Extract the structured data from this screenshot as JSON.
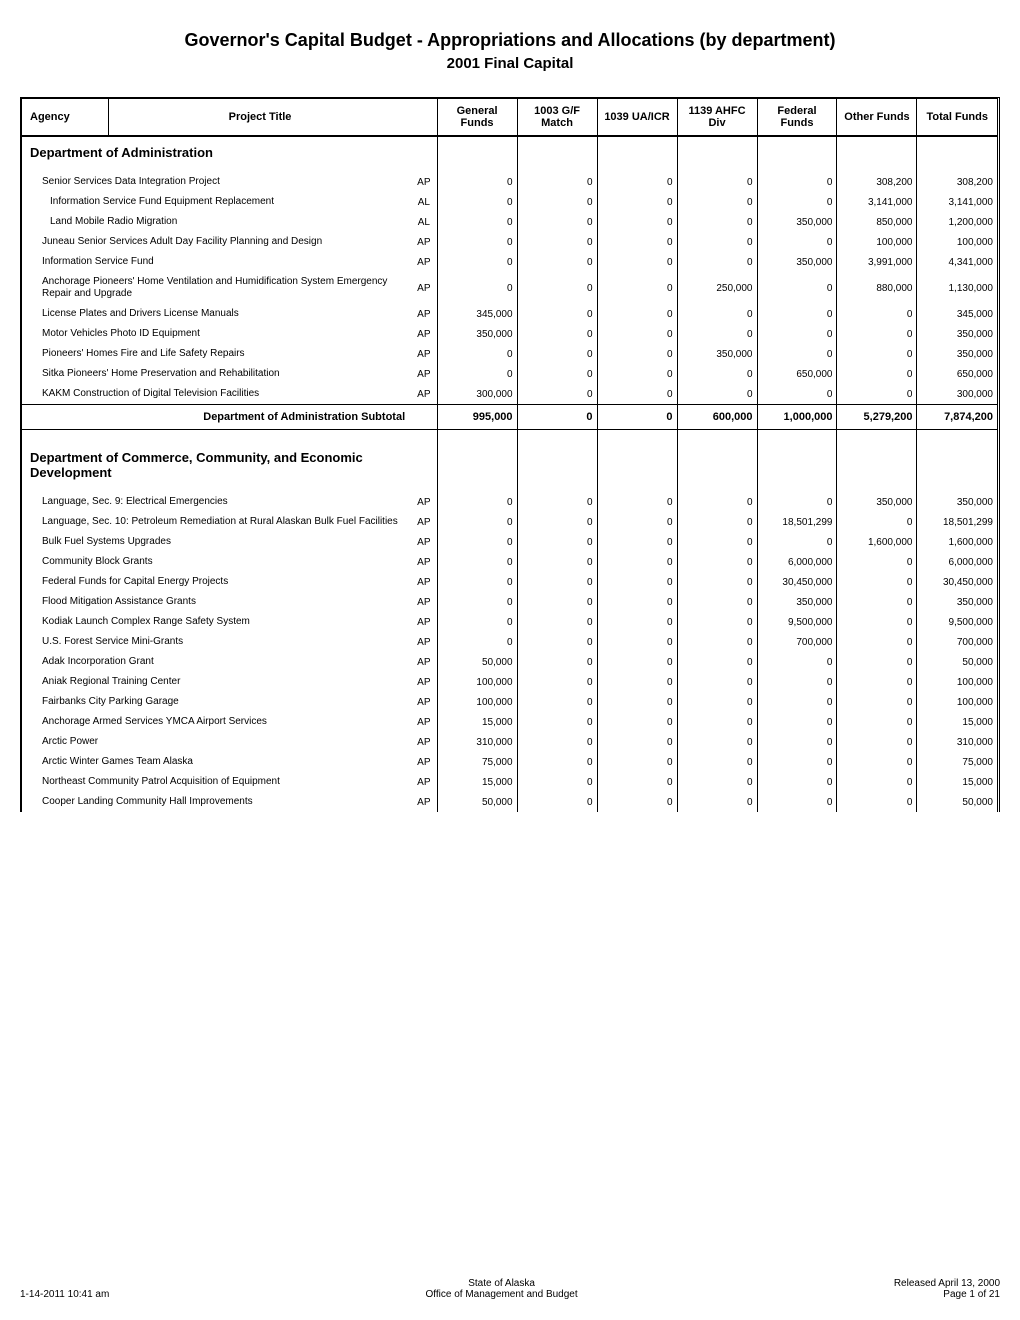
{
  "title": "Governor's Capital Budget - Appropriations and Allocations (by department)",
  "subtitle": "2001 Final Capital",
  "headers": {
    "agency": "Agency",
    "project": "Project Title",
    "general_funds": "General Funds",
    "gf_match": "1003 G/F Match",
    "ua_icr": "1039 UA/ICR",
    "ahfc_div": "1139 AHFC Div",
    "federal_funds": "Federal Funds",
    "other_funds": "Other Funds",
    "total_funds": "Total Funds"
  },
  "dept1": {
    "name": "Department of Administration",
    "subtotal_label": "Department of Administration Subtotal",
    "rows": [
      {
        "name": "Senior Services Data Integration Project",
        "code": "AP",
        "indent": false,
        "gf": "0",
        "gfm": "0",
        "ua": "0",
        "ahfc": "0",
        "fed": "0",
        "other": "308,200",
        "total": "308,200"
      },
      {
        "name": "Information Service Fund Equipment Replacement",
        "code": "AL",
        "indent": true,
        "gf": "0",
        "gfm": "0",
        "ua": "0",
        "ahfc": "0",
        "fed": "0",
        "other": "3,141,000",
        "total": "3,141,000"
      },
      {
        "name": "Land Mobile Radio Migration",
        "code": "AL",
        "indent": true,
        "gf": "0",
        "gfm": "0",
        "ua": "0",
        "ahfc": "0",
        "fed": "350,000",
        "other": "850,000",
        "total": "1,200,000"
      },
      {
        "name": "Juneau Senior Services Adult Day Facility Planning and Design",
        "code": "AP",
        "indent": false,
        "gf": "0",
        "gfm": "0",
        "ua": "0",
        "ahfc": "0",
        "fed": "0",
        "other": "100,000",
        "total": "100,000"
      },
      {
        "name": "Information Service Fund",
        "code": "AP",
        "indent": false,
        "gf": "0",
        "gfm": "0",
        "ua": "0",
        "ahfc": "0",
        "fed": "350,000",
        "other": "3,991,000",
        "total": "4,341,000"
      },
      {
        "name": "Anchorage Pioneers' Home Ventilation and Humidification System Emergency Repair and Upgrade",
        "code": "AP",
        "indent": false,
        "gf": "0",
        "gfm": "0",
        "ua": "0",
        "ahfc": "250,000",
        "fed": "0",
        "other": "880,000",
        "total": "1,130,000"
      },
      {
        "name": "License Plates and Drivers License Manuals",
        "code": "AP",
        "indent": false,
        "gf": "345,000",
        "gfm": "0",
        "ua": "0",
        "ahfc": "0",
        "fed": "0",
        "other": "0",
        "total": "345,000"
      },
      {
        "name": "Motor Vehicles Photo ID Equipment",
        "code": "AP",
        "indent": false,
        "gf": "350,000",
        "gfm": "0",
        "ua": "0",
        "ahfc": "0",
        "fed": "0",
        "other": "0",
        "total": "350,000"
      },
      {
        "name": "Pioneers' Homes Fire and Life Safety Repairs",
        "code": "AP",
        "indent": false,
        "gf": "0",
        "gfm": "0",
        "ua": "0",
        "ahfc": "350,000",
        "fed": "0",
        "other": "0",
        "total": "350,000"
      },
      {
        "name": "Sitka Pioneers' Home Preservation and Rehabilitation",
        "code": "AP",
        "indent": false,
        "gf": "0",
        "gfm": "0",
        "ua": "0",
        "ahfc": "0",
        "fed": "650,000",
        "other": "0",
        "total": "650,000"
      },
      {
        "name": "KAKM Construction of Digital Television Facilities",
        "code": "AP",
        "indent": false,
        "gf": "300,000",
        "gfm": "0",
        "ua": "0",
        "ahfc": "0",
        "fed": "0",
        "other": "0",
        "total": "300,000"
      }
    ],
    "subtotal": {
      "gf": "995,000",
      "gfm": "0",
      "ua": "0",
      "ahfc": "600,000",
      "fed": "1,000,000",
      "other": "5,279,200",
      "total": "7,874,200"
    }
  },
  "dept2": {
    "name": "Department of Commerce, Community, and Economic Development",
    "rows": [
      {
        "name": "Language, Sec. 9: Electrical Emergencies",
        "code": "AP",
        "indent": false,
        "gf": "0",
        "gfm": "0",
        "ua": "0",
        "ahfc": "0",
        "fed": "0",
        "other": "350,000",
        "total": "350,000"
      },
      {
        "name": "Language, Sec. 10: Petroleum Remediation at Rural Alaskan Bulk Fuel Facilities",
        "code": "AP",
        "indent": false,
        "gf": "0",
        "gfm": "0",
        "ua": "0",
        "ahfc": "0",
        "fed": "18,501,299",
        "other": "0",
        "total": "18,501,299"
      },
      {
        "name": "Bulk Fuel Systems Upgrades",
        "code": "AP",
        "indent": false,
        "gf": "0",
        "gfm": "0",
        "ua": "0",
        "ahfc": "0",
        "fed": "0",
        "other": "1,600,000",
        "total": "1,600,000"
      },
      {
        "name": "Community Block Grants",
        "code": "AP",
        "indent": false,
        "gf": "0",
        "gfm": "0",
        "ua": "0",
        "ahfc": "0",
        "fed": "6,000,000",
        "other": "0",
        "total": "6,000,000"
      },
      {
        "name": "Federal Funds for Capital Energy Projects",
        "code": "AP",
        "indent": false,
        "gf": "0",
        "gfm": "0",
        "ua": "0",
        "ahfc": "0",
        "fed": "30,450,000",
        "other": "0",
        "total": "30,450,000"
      },
      {
        "name": "Flood Mitigation Assistance Grants",
        "code": "AP",
        "indent": false,
        "gf": "0",
        "gfm": "0",
        "ua": "0",
        "ahfc": "0",
        "fed": "350,000",
        "other": "0",
        "total": "350,000"
      },
      {
        "name": "Kodiak Launch Complex Range Safety System",
        "code": "AP",
        "indent": false,
        "gf": "0",
        "gfm": "0",
        "ua": "0",
        "ahfc": "0",
        "fed": "9,500,000",
        "other": "0",
        "total": "9,500,000"
      },
      {
        "name": "U.S. Forest Service Mini-Grants",
        "code": "AP",
        "indent": false,
        "gf": "0",
        "gfm": "0",
        "ua": "0",
        "ahfc": "0",
        "fed": "700,000",
        "other": "0",
        "total": "700,000"
      },
      {
        "name": "Adak Incorporation Grant",
        "code": "AP",
        "indent": false,
        "gf": "50,000",
        "gfm": "0",
        "ua": "0",
        "ahfc": "0",
        "fed": "0",
        "other": "0",
        "total": "50,000"
      },
      {
        "name": "Aniak Regional Training Center",
        "code": "AP",
        "indent": false,
        "gf": "100,000",
        "gfm": "0",
        "ua": "0",
        "ahfc": "0",
        "fed": "0",
        "other": "0",
        "total": "100,000"
      },
      {
        "name": "Fairbanks City Parking Garage",
        "code": "AP",
        "indent": false,
        "gf": "100,000",
        "gfm": "0",
        "ua": "0",
        "ahfc": "0",
        "fed": "0",
        "other": "0",
        "total": "100,000"
      },
      {
        "name": "Anchorage Armed Services YMCA Airport Services",
        "code": "AP",
        "indent": false,
        "gf": "15,000",
        "gfm": "0",
        "ua": "0",
        "ahfc": "0",
        "fed": "0",
        "other": "0",
        "total": "15,000"
      },
      {
        "name": "Arctic Power",
        "code": "AP",
        "indent": false,
        "gf": "310,000",
        "gfm": "0",
        "ua": "0",
        "ahfc": "0",
        "fed": "0",
        "other": "0",
        "total": "310,000"
      },
      {
        "name": "Arctic Winter Games Team Alaska",
        "code": "AP",
        "indent": false,
        "gf": "75,000",
        "gfm": "0",
        "ua": "0",
        "ahfc": "0",
        "fed": "0",
        "other": "0",
        "total": "75,000"
      },
      {
        "name": "Northeast Community Patrol Acquisition of Equipment",
        "code": "AP",
        "indent": false,
        "gf": "15,000",
        "gfm": "0",
        "ua": "0",
        "ahfc": "0",
        "fed": "0",
        "other": "0",
        "total": "15,000"
      },
      {
        "name": "Cooper Landing Community Hall Improvements",
        "code": "AP",
        "indent": false,
        "gf": "50,000",
        "gfm": "0",
        "ua": "0",
        "ahfc": "0",
        "fed": "0",
        "other": "0",
        "total": "50,000"
      }
    ]
  },
  "footer": {
    "timestamp": "1-14-2011 10:41 am",
    "center1": "State of Alaska",
    "center2": "Office of Management and Budget",
    "released": "Released April 13, 2000",
    "page": "Page 1 of 21"
  }
}
